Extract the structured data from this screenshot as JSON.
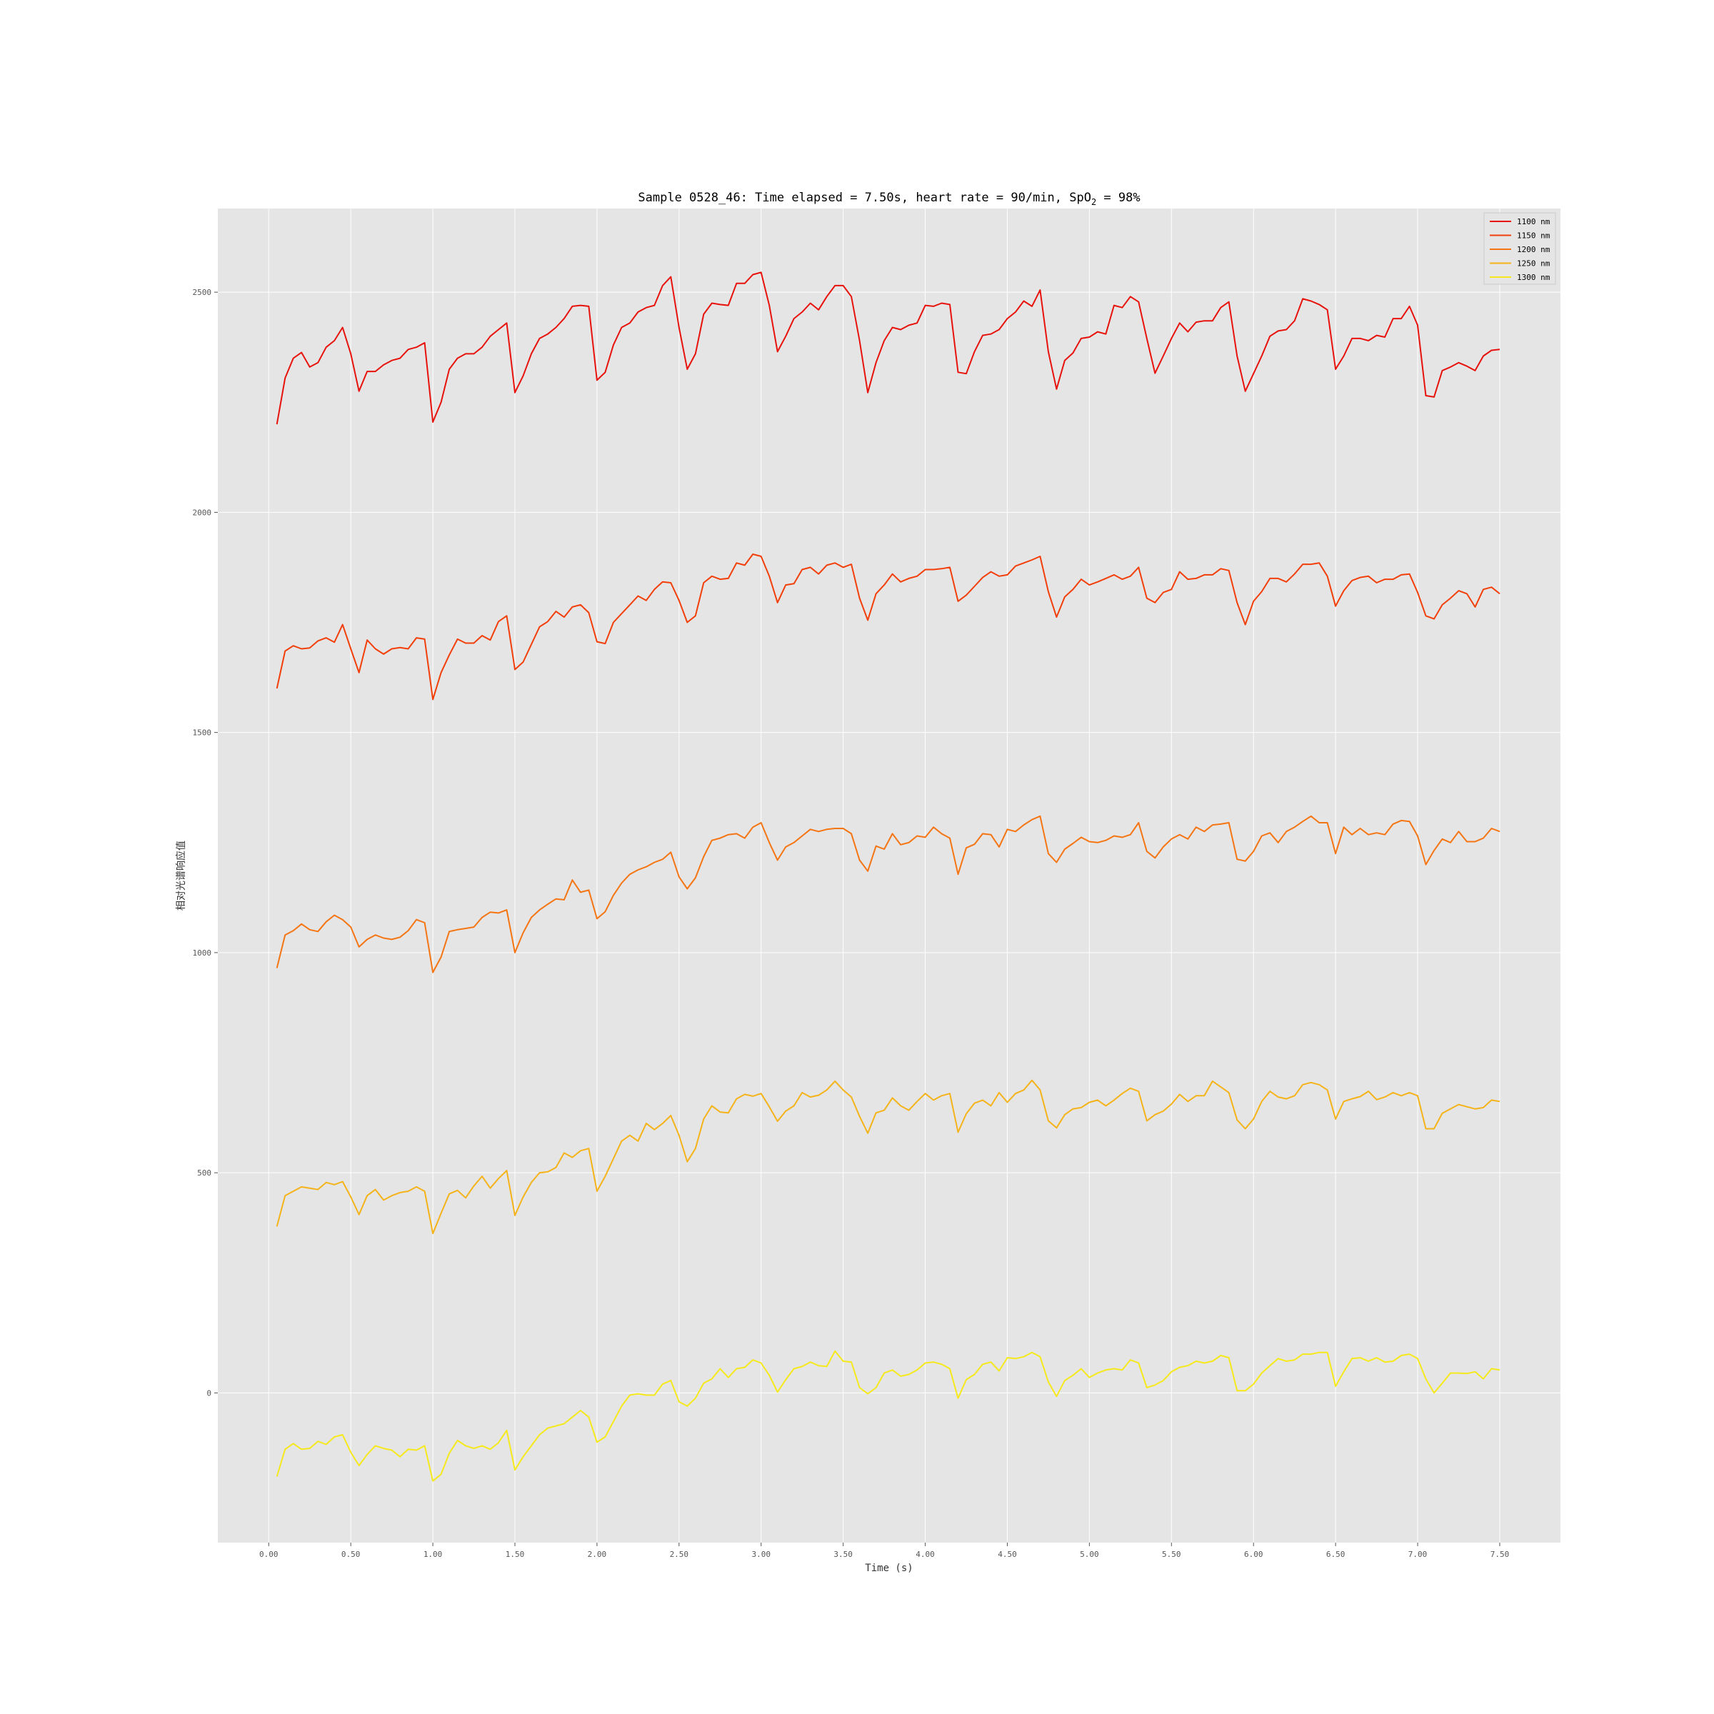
{
  "chart_data": {
    "type": "line",
    "title": {
      "prefix": "Sample 0528_46: Time elapsed = 7.50s, heart rate = 90/min, SpO",
      "subscript": "2",
      "suffix": " = 98%"
    },
    "xlabel": "Time (s)",
    "ylabel": "相对光谱响应值",
    "xlim": [
      -0.31,
      7.87
    ],
    "ylim": [
      -340,
      2690
    ],
    "x_ticks": [
      0,
      0.5,
      1,
      1.5,
      2,
      2.5,
      3,
      3.5,
      4,
      4.5,
      5,
      5.5,
      6,
      6.5,
      7,
      7.5
    ],
    "x_tick_labels": [
      "0.00",
      "0.50",
      "1.00",
      "1.50",
      "2.00",
      "2.50",
      "3.00",
      "3.50",
      "4.00",
      "4.50",
      "5.00",
      "5.50",
      "6.00",
      "6.50",
      "7.00",
      "7.50"
    ],
    "y_ticks": [
      0,
      500,
      1000,
      1500,
      2000,
      2500
    ],
    "y_tick_labels": [
      "0",
      "500",
      "1000",
      "1500",
      "2000",
      "2500"
    ],
    "grid": true,
    "legend_position": "top-right",
    "x": [
      0.05,
      0.1,
      0.15,
      0.2,
      0.25,
      0.3,
      0.35,
      0.4,
      0.45,
      0.5,
      0.55,
      0.6,
      0.65,
      0.7,
      0.75,
      0.8,
      0.85,
      0.9,
      0.95,
      1.0,
      1.05,
      1.1,
      1.15,
      1.2,
      1.25,
      1.3,
      1.35,
      1.4,
      1.45,
      1.5,
      1.55,
      1.6,
      1.65,
      1.7,
      1.75,
      1.8,
      1.85,
      1.9,
      1.95,
      2.0,
      2.05,
      2.1,
      2.15,
      2.2,
      2.25,
      2.3,
      2.35,
      2.4,
      2.45,
      2.5,
      2.55,
      2.6,
      2.65,
      2.7,
      2.75,
      2.8,
      2.85,
      2.9,
      2.95,
      3.0,
      3.05,
      3.1,
      3.15,
      3.2,
      3.25,
      3.3,
      3.35,
      3.4,
      3.45,
      3.5,
      3.55,
      3.6,
      3.65,
      3.7,
      3.75,
      3.8,
      3.85,
      3.9,
      3.95,
      4.0,
      4.05,
      4.1,
      4.15,
      4.2,
      4.25,
      4.3,
      4.35,
      4.4,
      4.45,
      4.5,
      4.55,
      4.6,
      4.65,
      4.7,
      4.75,
      4.8,
      4.85,
      4.9,
      4.95,
      5.0,
      5.05,
      5.1,
      5.15,
      5.2,
      5.25,
      5.3,
      5.35,
      5.4,
      5.45,
      5.5,
      5.55,
      5.6,
      5.65,
      5.7,
      5.75,
      5.8,
      5.85,
      5.9,
      5.95,
      6.0,
      6.05,
      6.1,
      6.15,
      6.2,
      6.25,
      6.3,
      6.35,
      6.4,
      6.45,
      6.5,
      6.55,
      6.6,
      6.65,
      6.7,
      6.75,
      6.8,
      6.85,
      6.9,
      6.95,
      7.0,
      7.05,
      7.1,
      7.15,
      7.2,
      7.25,
      7.3,
      7.35,
      7.4,
      7.45,
      7.5
    ],
    "series": [
      {
        "name": "1100 nm",
        "color": "#e8120c",
        "values": [
          2200,
          2305,
          2350,
          2363,
          2330,
          2340,
          2375,
          2390,
          2420,
          2360,
          2275,
          2320,
          2320,
          2335,
          2345,
          2350,
          2370,
          2375,
          2385,
          2205,
          2250,
          2325,
          2350,
          2360,
          2360,
          2375,
          2400,
          2415,
          2430,
          2272,
          2310,
          2360,
          2395,
          2405,
          2420,
          2440,
          2468,
          2470,
          2468,
          2300,
          2318,
          2380,
          2420,
          2430,
          2455,
          2465,
          2470,
          2515,
          2535,
          2420,
          2325,
          2360,
          2450,
          2475,
          2472,
          2470,
          2520,
          2520,
          2540,
          2545,
          2470,
          2365,
          2400,
          2440,
          2455,
          2475,
          2460,
          2490,
          2515,
          2515,
          2490,
          2390,
          2272,
          2340,
          2390,
          2420,
          2415,
          2425,
          2430,
          2470,
          2468,
          2475,
          2472,
          2318,
          2315,
          2365,
          2402,
          2405,
          2415,
          2440,
          2455,
          2480,
          2468,
          2505,
          2365,
          2280,
          2345,
          2362,
          2395,
          2398,
          2410,
          2405,
          2470,
          2465,
          2490,
          2478,
          2395,
          2316,
          2355,
          2395,
          2430,
          2410,
          2432,
          2435,
          2435,
          2465,
          2478,
          2355,
          2275,
          2315,
          2355,
          2400,
          2412,
          2415,
          2435,
          2485,
          2480,
          2472,
          2460,
          2325,
          2355,
          2395,
          2395,
          2390,
          2402,
          2398,
          2440,
          2440,
          2468,
          2425,
          2265,
          2262,
          2322,
          2330,
          2340,
          2332,
          2322,
          2355,
          2368,
          2370
        ]
      },
      {
        "name": "1150 nm",
        "color": "#f23f0a",
        "values": [
          1600,
          1685,
          1697,
          1690,
          1692,
          1708,
          1715,
          1705,
          1745,
          1690,
          1636,
          1710,
          1690,
          1678,
          1690,
          1693,
          1690,
          1715,
          1712,
          1575,
          1636,
          1676,
          1712,
          1703,
          1703,
          1720,
          1710,
          1752,
          1765,
          1643,
          1660,
          1700,
          1740,
          1752,
          1775,
          1762,
          1785,
          1790,
          1772,
          1706,
          1702,
          1750,
          1770,
          1790,
          1810,
          1800,
          1825,
          1842,
          1840,
          1800,
          1750,
          1765,
          1840,
          1855,
          1848,
          1850,
          1885,
          1880,
          1905,
          1900,
          1855,
          1795,
          1835,
          1838,
          1870,
          1875,
          1860,
          1880,
          1885,
          1875,
          1882,
          1805,
          1755,
          1815,
          1835,
          1860,
          1842,
          1850,
          1855,
          1870,
          1870,
          1872,
          1875,
          1798,
          1812,
          1832,
          1852,
          1865,
          1855,
          1858,
          1878,
          1885,
          1892,
          1900,
          1820,
          1762,
          1808,
          1825,
          1848,
          1835,
          1842,
          1850,
          1858,
          1848,
          1855,
          1875,
          1805,
          1795,
          1818,
          1825,
          1865,
          1848,
          1850,
          1858,
          1858,
          1872,
          1868,
          1795,
          1745,
          1798,
          1820,
          1850,
          1850,
          1842,
          1860,
          1882,
          1882,
          1885,
          1855,
          1787,
          1822,
          1845,
          1852,
          1855,
          1840,
          1848,
          1848,
          1858,
          1860,
          1818,
          1765,
          1758,
          1790,
          1805,
          1822,
          1815,
          1785,
          1825,
          1830,
          1815
        ]
      },
      {
        "name": "1200 nm",
        "color": "#f57512",
        "values": [
          965,
          1040,
          1050,
          1065,
          1052,
          1048,
          1070,
          1085,
          1075,
          1058,
          1013,
          1030,
          1040,
          1033,
          1030,
          1035,
          1050,
          1075,
          1068,
          955,
          990,
          1048,
          1052,
          1055,
          1058,
          1080,
          1092,
          1090,
          1097,
          1000,
          1045,
          1080,
          1097,
          1110,
          1122,
          1120,
          1165,
          1137,
          1142,
          1077,
          1093,
          1130,
          1158,
          1178,
          1188,
          1195,
          1205,
          1212,
          1228,
          1172,
          1145,
          1170,
          1218,
          1255,
          1260,
          1268,
          1270,
          1260,
          1285,
          1295,
          1250,
          1210,
          1240,
          1250,
          1265,
          1280,
          1275,
          1280,
          1282,
          1282,
          1270,
          1210,
          1185,
          1242,
          1235,
          1270,
          1245,
          1250,
          1265,
          1262,
          1285,
          1270,
          1260,
          1178,
          1238,
          1246,
          1270,
          1268,
          1240,
          1280,
          1275,
          1290,
          1302,
          1310,
          1225,
          1205,
          1235,
          1248,
          1262,
          1252,
          1250,
          1255,
          1265,
          1262,
          1268,
          1295,
          1230,
          1215,
          1240,
          1258,
          1268,
          1258,
          1285,
          1275,
          1290,
          1292,
          1295,
          1212,
          1208,
          1230,
          1265,
          1272,
          1250,
          1275,
          1285,
          1298,
          1310,
          1295,
          1295,
          1225,
          1285,
          1268,
          1282,
          1268,
          1272,
          1268,
          1292,
          1300,
          1298,
          1265,
          1200,
          1232,
          1258,
          1250,
          1275,
          1252,
          1252,
          1260,
          1282,
          1275
        ]
      },
      {
        "name": "1250 nm",
        "color": "#f5b31a",
        "values": [
          378,
          448,
          458,
          468,
          465,
          462,
          478,
          473,
          480,
          445,
          405,
          448,
          462,
          438,
          448,
          455,
          458,
          468,
          458,
          362,
          408,
          452,
          460,
          443,
          470,
          492,
          465,
          487,
          505,
          403,
          445,
          478,
          500,
          502,
          512,
          545,
          535,
          550,
          555,
          458,
          492,
          532,
          572,
          585,
          572,
          612,
          598,
          612,
          630,
          585,
          525,
          555,
          622,
          652,
          638,
          636,
          668,
          678,
          674,
          680,
          650,
          617,
          640,
          652,
          682,
          672,
          676,
          688,
          708,
          688,
          672,
          628,
          590,
          636,
          642,
          670,
          652,
          642,
          662,
          680,
          665,
          675,
          680,
          592,
          634,
          658,
          665,
          652,
          682,
          660,
          680,
          688,
          710,
          688,
          618,
          602,
          632,
          645,
          648,
          660,
          665,
          652,
          665,
          680,
          692,
          685,
          618,
          632,
          640,
          656,
          678,
          662,
          675,
          675,
          708,
          695,
          682,
          620,
          600,
          622,
          662,
          685,
          672,
          668,
          675,
          700,
          705,
          700,
          688,
          622,
          662,
          668,
          673,
          685,
          666,
          672,
          682,
          675,
          682,
          675,
          600,
          600,
          635,
          645,
          655,
          650,
          645,
          648,
          665,
          662
        ]
      },
      {
        "name": "1300 nm",
        "color": "#f6e91b",
        "values": [
          -190,
          -128,
          -115,
          -128,
          -126,
          -110,
          -117,
          -100,
          -95,
          -135,
          -165,
          -140,
          -120,
          -126,
          -130,
          -145,
          -128,
          -130,
          -120,
          -200,
          -185,
          -137,
          -108,
          -120,
          -126,
          -120,
          -128,
          -113,
          -85,
          -175,
          -145,
          -120,
          -95,
          -80,
          -75,
          -70,
          -55,
          -40,
          -55,
          -112,
          -100,
          -65,
          -30,
          -5,
          -2,
          -5,
          -5,
          20,
          28,
          -20,
          -30,
          -12,
          22,
          32,
          55,
          35,
          55,
          58,
          75,
          68,
          40,
          2,
          30,
          55,
          60,
          70,
          62,
          60,
          95,
          72,
          70,
          12,
          -2,
          12,
          45,
          52,
          38,
          42,
          52,
          68,
          70,
          65,
          55,
          -12,
          30,
          42,
          65,
          70,
          50,
          80,
          78,
          82,
          92,
          82,
          25,
          -8,
          28,
          40,
          55,
          35,
          45,
          52,
          55,
          52,
          75,
          68,
          12,
          18,
          28,
          48,
          58,
          62,
          72,
          68,
          72,
          85,
          80,
          5,
          5,
          20,
          45,
          62,
          78,
          72,
          75,
          88,
          88,
          92,
          92,
          15,
          48,
          78,
          80,
          72,
          80,
          70,
          72,
          85,
          88,
          78,
          32,
          0,
          22,
          45,
          45,
          44,
          48,
          32,
          55,
          52
        ]
      }
    ]
  }
}
